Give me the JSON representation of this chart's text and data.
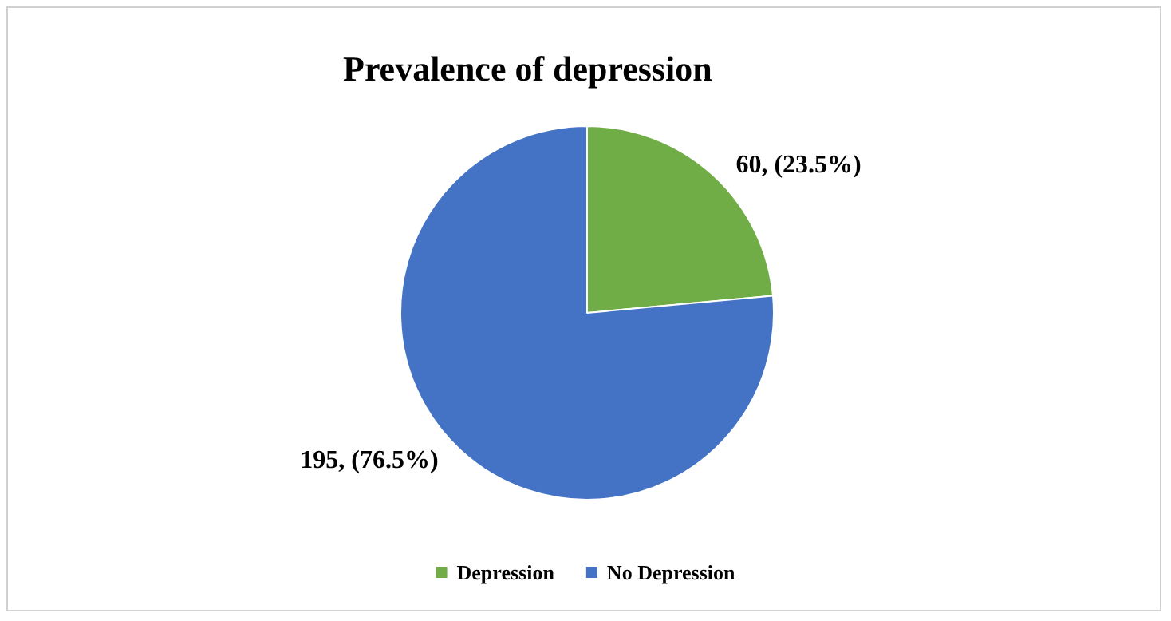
{
  "chart_data": {
    "type": "pie",
    "title": "Prevalence of depression",
    "categories": [
      "Depression",
      "No Depression"
    ],
    "values": [
      60,
      195
    ],
    "colors": [
      "#70ad47",
      "#4472c4"
    ],
    "value_labels": [
      "60, (23.5%)",
      "195, (76.5%)"
    ],
    "legend": "bottom"
  }
}
